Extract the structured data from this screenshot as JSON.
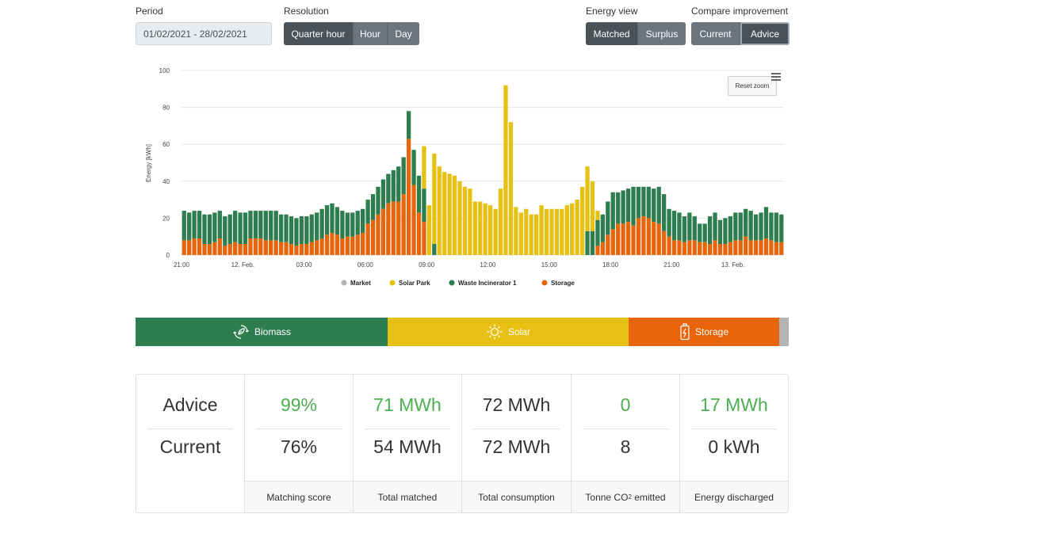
{
  "controls": {
    "period_label": "Period",
    "period_value": "01/02/2021 - 28/02/2021",
    "resolution_label": "Resolution",
    "resolution_options": [
      "Quarter hour",
      "Hour",
      "Day"
    ],
    "resolution_selected": "Quarter hour",
    "energy_view_label": "Energy view",
    "energy_view_options": [
      "Matched",
      "Surplus"
    ],
    "energy_view_selected": "Matched",
    "compare_label": "Compare improvement",
    "compare_options": [
      "Current",
      "Advice"
    ],
    "compare_selected": "Advice"
  },
  "chart_toolbar": {
    "reset_zoom": "Reset zoom",
    "menu_icon": "hamburger-menu-icon"
  },
  "chart_data": {
    "type": "bar",
    "stacked": true,
    "ylabel": "Energy [kWh]",
    "ylim": [
      0,
      100
    ],
    "yticks": [
      0,
      20,
      40,
      60,
      80,
      100
    ],
    "x_tick_labels": [
      "21:00",
      "12. Feb.",
      "03:00",
      "06:00",
      "09:00",
      "12:00",
      "15:00",
      "18:00",
      "21:00",
      "13. Feb."
    ],
    "x_tick_indices": [
      0,
      12,
      24,
      36,
      48,
      60,
      72,
      84,
      96,
      108
    ],
    "grid": true,
    "legend_position": "bottom-center",
    "colors": {
      "Market": "#b3b3b3",
      "Solar Park": "#e6c012",
      "Waste Incinerator 1": "#2e7d4f",
      "Storage": "#e8650a"
    },
    "series": [
      {
        "name": "Market",
        "values": []
      },
      {
        "name": "Storage",
        "values": [
          8,
          8,
          9,
          9,
          6,
          6,
          7,
          9,
          5,
          6,
          7,
          6,
          6,
          9,
          9,
          9,
          8,
          8,
          8,
          7,
          7,
          6,
          5,
          6,
          6,
          7,
          8,
          9,
          11,
          12,
          11,
          9,
          10,
          10,
          11,
          12,
          17,
          19,
          22,
          25,
          28,
          29,
          29,
          33,
          63,
          38,
          23,
          18,
          0,
          0,
          0,
          0,
          0,
          0,
          0,
          0,
          0,
          0,
          0,
          0,
          0,
          0,
          0,
          0,
          0,
          0,
          0,
          0,
          0,
          0,
          0,
          0,
          0,
          0,
          0,
          0,
          0,
          0,
          0,
          0,
          0,
          5,
          7,
          11,
          14,
          17,
          17,
          18,
          16,
          20,
          21,
          20,
          18,
          17,
          13,
          10,
          8,
          8,
          7,
          8,
          8,
          7,
          7,
          6,
          8,
          6,
          6,
          7,
          8,
          8,
          10,
          8,
          8,
          8,
          9,
          8,
          7,
          7
        ]
      },
      {
        "name": "Waste Incinerator 1",
        "values": [
          16,
          15,
          15,
          15,
          16,
          16,
          16,
          15,
          16,
          16,
          17,
          17,
          17,
          15,
          15,
          15,
          16,
          16,
          16,
          15,
          15,
          15,
          15,
          15,
          15,
          15,
          15,
          16,
          16,
          16,
          15,
          15,
          13,
          13,
          13,
          13,
          13,
          14,
          15,
          16,
          16,
          17,
          19,
          20,
          15,
          19,
          20,
          18,
          0,
          6,
          0,
          0,
          0,
          0,
          0,
          0,
          0,
          0,
          0,
          0,
          0,
          0,
          0,
          0,
          0,
          0,
          0,
          0,
          0,
          0,
          0,
          0,
          0,
          0,
          0,
          0,
          0,
          0,
          0,
          13,
          13,
          14,
          15,
          18,
          20,
          17,
          18,
          18,
          21,
          17,
          16,
          17,
          18,
          20,
          20,
          15,
          16,
          15,
          14,
          15,
          13,
          10,
          10,
          15,
          15,
          13,
          14,
          14,
          15,
          15,
          15,
          16,
          14,
          15,
          17,
          15,
          16,
          15
        ]
      },
      {
        "name": "Solar Park",
        "values": [
          0,
          0,
          0,
          0,
          0,
          0,
          0,
          0,
          0,
          0,
          0,
          0,
          0,
          0,
          0,
          0,
          0,
          0,
          0,
          0,
          0,
          0,
          0,
          0,
          0,
          0,
          0,
          0,
          0,
          0,
          0,
          0,
          0,
          0,
          0,
          0,
          0,
          0,
          0,
          0,
          0,
          0,
          0,
          0,
          0,
          0,
          0,
          23,
          27,
          49,
          48,
          45,
          44,
          43,
          40,
          37,
          36,
          29,
          29,
          28,
          27,
          25,
          36,
          92,
          72,
          26,
          23,
          25,
          22,
          22,
          27,
          25,
          25,
          25,
          25,
          27,
          28,
          30,
          37,
          35,
          27,
          5,
          0,
          0,
          0,
          0,
          0,
          0,
          0,
          0,
          0,
          0,
          0,
          0,
          0,
          0,
          0,
          0,
          0,
          0,
          0,
          0,
          0,
          0,
          0,
          0,
          0,
          0,
          0,
          0,
          0,
          0,
          0,
          0,
          0,
          0,
          0,
          0
        ]
      }
    ]
  },
  "legend": [
    {
      "label": "Market",
      "color": "#b3b3b3"
    },
    {
      "label": "Solar Park",
      "color": "#e6c012"
    },
    {
      "label": "Waste Incinerator 1",
      "color": "#2e7d4f"
    },
    {
      "label": "Storage",
      "color": "#e8650a"
    }
  ],
  "mix_bar": [
    {
      "label": "Biomass",
      "color": "#2e7d4f",
      "share": 0.386,
      "icon": "biomass-icon"
    },
    {
      "label": "Solar",
      "color": "#e6c012",
      "share": 0.369,
      "icon": "sun-icon"
    },
    {
      "label": "Storage",
      "color": "#e8650a",
      "share": 0.231,
      "icon": "battery-icon"
    },
    {
      "label": "",
      "color": "#b3b3b3",
      "share": 0.014,
      "icon": ""
    }
  ],
  "stats": {
    "row_labels": {
      "advice": "Advice",
      "current": "Current"
    },
    "columns": [
      {
        "advice": "99%",
        "current": "76%",
        "label": "Matching score",
        "advice_green": true
      },
      {
        "advice": "71 MWh",
        "current": "54 MWh",
        "label": "Total matched",
        "advice_green": true
      },
      {
        "advice": "72 MWh",
        "current": "72 MWh",
        "label": "Total consumption",
        "advice_green": false
      },
      {
        "advice": "0",
        "current": "8",
        "label_pre": "Tonne CO",
        "label_sub": "2",
        "label_post": " emitted",
        "advice_green": true
      },
      {
        "advice": "17 MWh",
        "current": "0 kWh",
        "label": "Energy discharged",
        "advice_green": true
      }
    ]
  }
}
